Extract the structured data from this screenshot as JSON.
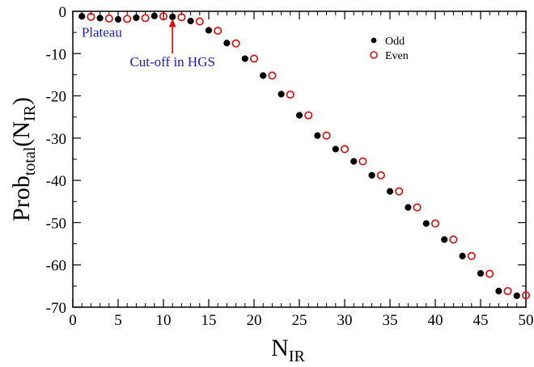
{
  "chart_data": {
    "type": "scatter",
    "title": "",
    "xlabel": {
      "main": "N",
      "sub": "IR"
    },
    "ylabel": {
      "main": "Prob",
      "sub": "total",
      "paren_open": "(N",
      "paren_sub": "IR",
      "paren_close": ")"
    },
    "xlim": [
      0,
      50
    ],
    "ylim": [
      -70,
      0
    ],
    "xticks": [
      0,
      5,
      10,
      15,
      20,
      25,
      30,
      35,
      40,
      45,
      50
    ],
    "yticks": [
      0,
      -10,
      -20,
      -30,
      -40,
      -50,
      -60,
      -70
    ],
    "grid": false,
    "legend_position": "top-right",
    "series": [
      {
        "name": "Odd",
        "color": "#000000",
        "marker": "filled-circle",
        "x": [
          1,
          3,
          5,
          7,
          9,
          11,
          13,
          15,
          17,
          19,
          21,
          23,
          25,
          27,
          29,
          31,
          33,
          35,
          37,
          39,
          41,
          43,
          45,
          47,
          49
        ],
        "y": [
          -1.2,
          -1.6,
          -1.9,
          -1.5,
          -1.1,
          -1.3,
          -2.3,
          -4.5,
          -7.5,
          -11.2,
          -15.2,
          -19.6,
          -24.6,
          -29.4,
          -32.6,
          -35.5,
          -38.8,
          -42.6,
          -46.4,
          -50.2,
          -54.0,
          -57.9,
          -62.0,
          -66.2,
          -67.3
        ]
      },
      {
        "name": "Even",
        "color": "#e01010",
        "marker": "open-circle",
        "x": [
          2,
          4,
          6,
          8,
          10,
          12,
          14,
          16,
          18,
          20,
          22,
          24,
          26,
          28,
          30,
          32,
          34,
          36,
          38,
          40,
          42,
          44,
          46,
          48,
          50
        ],
        "y": [
          -1.3,
          -1.7,
          -1.8,
          -1.6,
          -1.2,
          -1.4,
          -2.4,
          -4.6,
          -7.6,
          -11.2,
          -15.2,
          -19.7,
          -24.6,
          -29.4,
          -32.6,
          -35.5,
          -38.8,
          -42.6,
          -46.4,
          -50.2,
          -54.0,
          -57.9,
          -62.1,
          -66.2,
          -67.2
        ]
      }
    ],
    "annotations": [
      {
        "text": "Plateau",
        "x": 3.2,
        "y": -6.0,
        "color": "#1a1ad0"
      },
      {
        "text": "Cut-off in HGS",
        "x": 11,
        "y": -13.0,
        "color": "#1a1ad0",
        "arrow": {
          "from_y": -10.0,
          "to_y": -1.8,
          "x": 11,
          "color": "#e01010"
        }
      }
    ]
  }
}
